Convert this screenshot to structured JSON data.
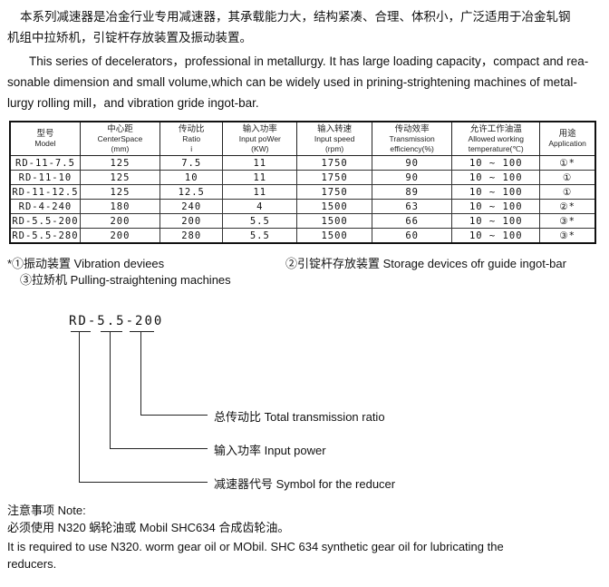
{
  "intro": {
    "zh_line1": "本系列减速器是冶金行业专用减速器，其承载能力大，结构紧凑、合理、体积小，广泛适用于冶金轧钢",
    "zh_line2": "机组中拉矫机，引锭杆存放装置及振动装置。",
    "en_line1": "This series of decelerators，professional in metallurgy.  It has large loading capacity，compact and rea-",
    "en_line2": "sonable dimension and small volume,which can be widely used in prining-strightening machines of metal-",
    "en_line3": "lurgy rolling mill，and vibration gride ingot-bar."
  },
  "table": {
    "headers": [
      {
        "zh": "型号",
        "en": "Model",
        "unit": ""
      },
      {
        "zh": "中心距",
        "en": "CenterSpace",
        "unit": "(mm)"
      },
      {
        "zh": "传动比",
        "en": "Ratio",
        "unit": "i"
      },
      {
        "zh": "输入功率",
        "en": "Input poWer",
        "unit": "(KW)"
      },
      {
        "zh": "输入转速",
        "en": "Input speed",
        "unit": "(rpm)"
      },
      {
        "zh": "传动效率",
        "en": "Transmission",
        "unit": "efficiency(%)"
      },
      {
        "zh": "允许工作油温",
        "en": "Allowed working",
        "unit": "temperature(℃)"
      },
      {
        "zh": "用途",
        "en": "Application",
        "unit": ""
      }
    ],
    "rows": [
      [
        "RD-11-7.5",
        "125",
        "7.5",
        "11",
        "1750",
        "90",
        "10 ~ 100",
        "①*"
      ],
      [
        "RD-11-10",
        "125",
        "10",
        "11",
        "1750",
        "90",
        "10 ~ 100",
        "①"
      ],
      [
        "RD-11-12.5",
        "125",
        "12.5",
        "11",
        "1750",
        "89",
        "10 ~ 100",
        "①"
      ],
      [
        "RD-4-240",
        "180",
        "240",
        "4",
        "1500",
        "63",
        "10 ~ 100",
        "②*"
      ],
      [
        "RD-5.5-200",
        "200",
        "200",
        "5.5",
        "1500",
        "66",
        "10 ~ 100",
        "③*"
      ],
      [
        "RD-5.5-280",
        "200",
        "280",
        "5.5",
        "1500",
        "60",
        "10 ~ 100",
        "③*"
      ]
    ]
  },
  "legend": {
    "item1": "*①振动装置 Vibration deviees",
    "item2": "②引锭杆存放装置 Storage devices ofr guide ingot-bar",
    "item3": "③拉矫机 Pulling-straightening machines"
  },
  "designation": {
    "code_part1": "RD",
    "sep1": "-",
    "code_part2": "5.5",
    "sep2": "-",
    "code_part3": "200",
    "label_ratio": "总传动比  Total transmission ratio",
    "label_power": "输入功率   Input power",
    "label_symbol": "减速器代号  Symbol for the reducer"
  },
  "note": {
    "title": "注意事项  Note:",
    "zh": "必须使用 N320 蜗轮油或 Mobil SHC634 合成齿轮油。",
    "en_line1": "It is required to use N320. worm gear oil or MObil. SHC 634 synthetic gear oil for lubricating the",
    "en_line2": "reducers."
  }
}
